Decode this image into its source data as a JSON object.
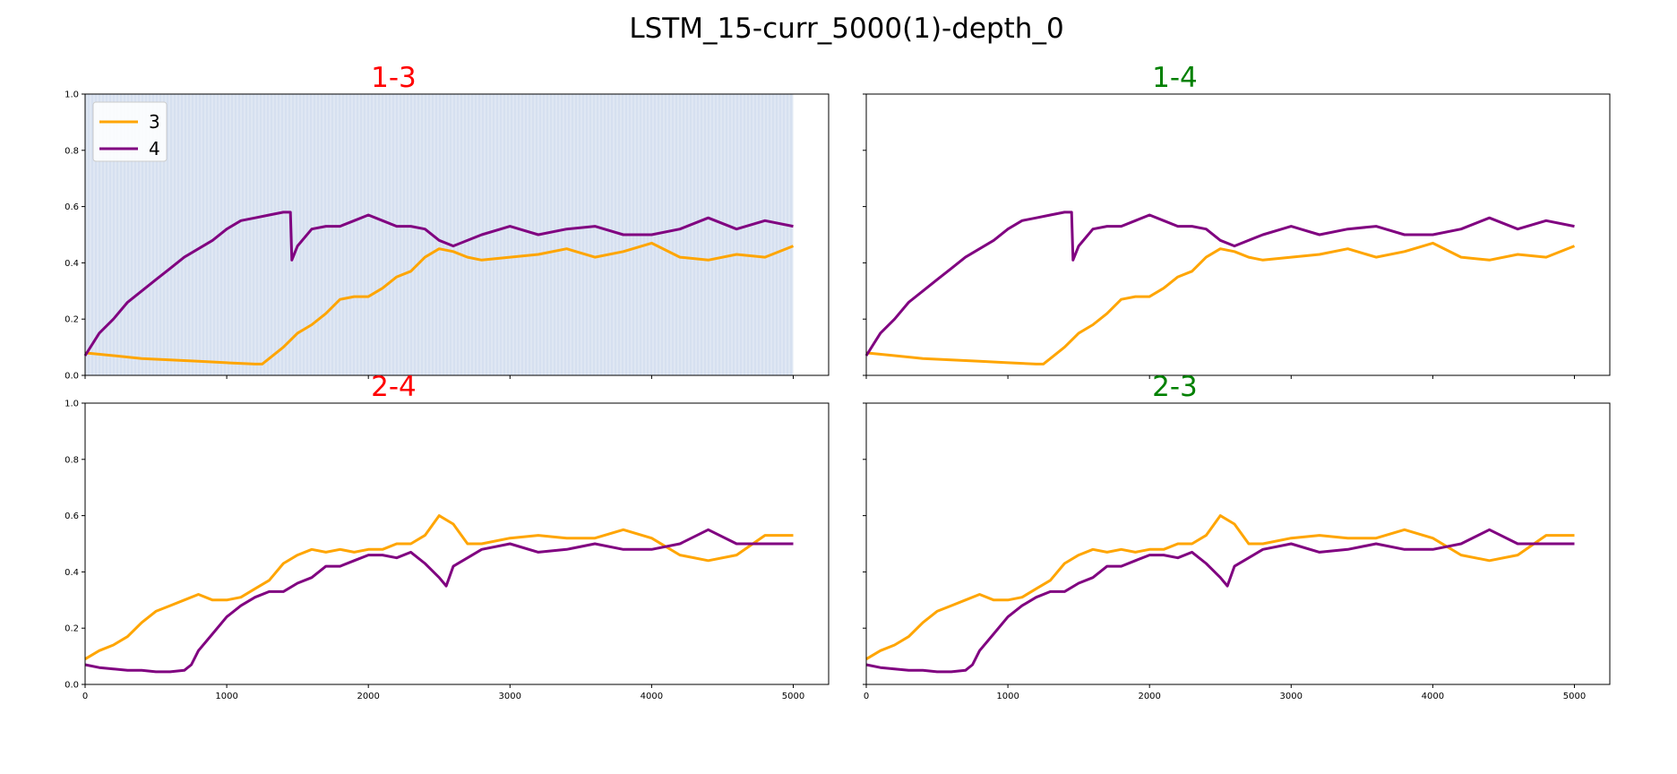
{
  "figure": {
    "title": "LSTM_15-curr_5000(1)-depth_0"
  },
  "colors": {
    "series_3": "#FFA500",
    "series_4": "#800080",
    "title_red": "#FF0000",
    "title_green": "#008000",
    "shade": "#dfe7f3"
  },
  "chart_data": [
    {
      "type": "line",
      "title": "1-3",
      "title_color": "red",
      "xlim": [
        0,
        5250
      ],
      "ylim": [
        0,
        1
      ],
      "xticks": [
        0,
        1000,
        2000,
        3000,
        4000,
        5000
      ],
      "xtick_labels_visible": false,
      "yticks": [
        0.0,
        0.2,
        0.4,
        0.6,
        0.8,
        1.0
      ],
      "ytick_labels": [
        "0.0",
        "0.2",
        "0.4",
        "0.6",
        "0.8",
        "1.0"
      ],
      "yticks_labels_visible": true,
      "shaded_region": [
        0,
        5000
      ],
      "legend": {
        "placement": "upper-left",
        "entries": [
          "3",
          "4"
        ]
      },
      "series": [
        {
          "name": "3",
          "color": "orange",
          "x": [
            0,
            200,
            400,
            600,
            800,
            1000,
            1200,
            1250,
            1300,
            1400,
            1500,
            1600,
            1700,
            1800,
            1900,
            2000,
            2100,
            2200,
            2300,
            2400,
            2500,
            2600,
            2700,
            2800,
            3000,
            3200,
            3400,
            3600,
            3800,
            4000,
            4200,
            4400,
            4600,
            4800,
            5000
          ],
          "y": [
            0.08,
            0.07,
            0.06,
            0.055,
            0.05,
            0.045,
            0.04,
            0.04,
            0.06,
            0.1,
            0.15,
            0.18,
            0.22,
            0.27,
            0.28,
            0.28,
            0.31,
            0.35,
            0.37,
            0.42,
            0.45,
            0.44,
            0.42,
            0.41,
            0.42,
            0.43,
            0.45,
            0.42,
            0.44,
            0.47,
            0.42,
            0.41,
            0.43,
            0.42,
            0.46
          ]
        },
        {
          "name": "4",
          "color": "purple",
          "x": [
            0,
            100,
            200,
            300,
            400,
            500,
            600,
            700,
            800,
            900,
            1000,
            1100,
            1200,
            1300,
            1400,
            1450,
            1460,
            1500,
            1600,
            1700,
            1800,
            1900,
            2000,
            2100,
            2200,
            2300,
            2400,
            2500,
            2600,
            2800,
            3000,
            3200,
            3400,
            3600,
            3800,
            4000,
            4200,
            4400,
            4600,
            4800,
            5000
          ],
          "y": [
            0.07,
            0.15,
            0.2,
            0.26,
            0.3,
            0.34,
            0.38,
            0.42,
            0.45,
            0.48,
            0.52,
            0.55,
            0.56,
            0.57,
            0.58,
            0.58,
            0.41,
            0.46,
            0.52,
            0.53,
            0.53,
            0.55,
            0.57,
            0.55,
            0.53,
            0.53,
            0.52,
            0.48,
            0.46,
            0.5,
            0.53,
            0.5,
            0.52,
            0.53,
            0.5,
            0.5,
            0.52,
            0.56,
            0.52,
            0.55,
            0.53
          ]
        }
      ]
    },
    {
      "type": "line",
      "title": "1-4",
      "title_color": "green",
      "xlim": [
        0,
        5250
      ],
      "ylim": [
        0,
        1
      ],
      "xticks": [
        0,
        1000,
        2000,
        3000,
        4000,
        5000
      ],
      "xtick_labels_visible": false,
      "yticks": [
        0.0,
        0.2,
        0.4,
        0.6,
        0.8,
        1.0
      ],
      "ytick_labels": [
        "0.0",
        "0.2",
        "0.4",
        "0.6",
        "0.8",
        "1.0"
      ],
      "yticks_labels_visible": false,
      "series": [
        {
          "name": "3",
          "color": "orange",
          "x": [
            0,
            200,
            400,
            600,
            800,
            1000,
            1200,
            1250,
            1300,
            1400,
            1500,
            1600,
            1700,
            1800,
            1900,
            2000,
            2100,
            2200,
            2300,
            2400,
            2500,
            2600,
            2700,
            2800,
            3000,
            3200,
            3400,
            3600,
            3800,
            4000,
            4200,
            4400,
            4600,
            4800,
            5000
          ],
          "y": [
            0.08,
            0.07,
            0.06,
            0.055,
            0.05,
            0.045,
            0.04,
            0.04,
            0.06,
            0.1,
            0.15,
            0.18,
            0.22,
            0.27,
            0.28,
            0.28,
            0.31,
            0.35,
            0.37,
            0.42,
            0.45,
            0.44,
            0.42,
            0.41,
            0.42,
            0.43,
            0.45,
            0.42,
            0.44,
            0.47,
            0.42,
            0.41,
            0.43,
            0.42,
            0.46
          ]
        },
        {
          "name": "4",
          "color": "purple",
          "x": [
            0,
            100,
            200,
            300,
            400,
            500,
            600,
            700,
            800,
            900,
            1000,
            1100,
            1200,
            1300,
            1400,
            1450,
            1460,
            1500,
            1600,
            1700,
            1800,
            1900,
            2000,
            2100,
            2200,
            2300,
            2400,
            2500,
            2600,
            2800,
            3000,
            3200,
            3400,
            3600,
            3800,
            4000,
            4200,
            4400,
            4600,
            4800,
            5000
          ],
          "y": [
            0.07,
            0.15,
            0.2,
            0.26,
            0.3,
            0.34,
            0.38,
            0.42,
            0.45,
            0.48,
            0.52,
            0.55,
            0.56,
            0.57,
            0.58,
            0.58,
            0.41,
            0.46,
            0.52,
            0.53,
            0.53,
            0.55,
            0.57,
            0.55,
            0.53,
            0.53,
            0.52,
            0.48,
            0.46,
            0.5,
            0.53,
            0.5,
            0.52,
            0.53,
            0.5,
            0.5,
            0.52,
            0.56,
            0.52,
            0.55,
            0.53
          ]
        }
      ]
    },
    {
      "type": "line",
      "title": "2-4",
      "title_color": "red",
      "xlim": [
        0,
        5250
      ],
      "ylim": [
        0,
        1
      ],
      "xticks": [
        0,
        1000,
        2000,
        3000,
        4000,
        5000
      ],
      "xtick_labels": [
        "0",
        "1000",
        "2000",
        "3000",
        "4000",
        "5000"
      ],
      "xtick_labels_visible": true,
      "yticks": [
        0.0,
        0.2,
        0.4,
        0.6,
        0.8,
        1.0
      ],
      "ytick_labels": [
        "0.0",
        "0.2",
        "0.4",
        "0.6",
        "0.8",
        "1.0"
      ],
      "yticks_labels_visible": true,
      "series": [
        {
          "name": "3",
          "color": "orange",
          "x": [
            0,
            100,
            200,
            300,
            400,
            500,
            600,
            700,
            800,
            900,
            1000,
            1100,
            1200,
            1300,
            1400,
            1500,
            1600,
            1700,
            1800,
            1900,
            2000,
            2100,
            2200,
            2300,
            2400,
            2500,
            2600,
            2700,
            2800,
            3000,
            3200,
            3400,
            3600,
            3800,
            4000,
            4200,
            4400,
            4600,
            4800,
            5000
          ],
          "y": [
            0.09,
            0.12,
            0.14,
            0.17,
            0.22,
            0.26,
            0.28,
            0.3,
            0.32,
            0.3,
            0.3,
            0.31,
            0.34,
            0.37,
            0.43,
            0.46,
            0.48,
            0.47,
            0.48,
            0.47,
            0.48,
            0.48,
            0.5,
            0.5,
            0.53,
            0.6,
            0.57,
            0.5,
            0.5,
            0.52,
            0.53,
            0.52,
            0.52,
            0.55,
            0.52,
            0.46,
            0.44,
            0.46,
            0.53,
            0.53
          ]
        },
        {
          "name": "4",
          "color": "purple",
          "x": [
            0,
            100,
            200,
            300,
            400,
            500,
            600,
            700,
            750,
            800,
            900,
            1000,
            1100,
            1200,
            1300,
            1400,
            1500,
            1600,
            1700,
            1800,
            1900,
            2000,
            2100,
            2200,
            2300,
            2400,
            2500,
            2550,
            2600,
            2700,
            2800,
            3000,
            3200,
            3400,
            3600,
            3800,
            4000,
            4200,
            4400,
            4600,
            4800,
            5000
          ],
          "y": [
            0.07,
            0.06,
            0.055,
            0.05,
            0.05,
            0.045,
            0.045,
            0.05,
            0.07,
            0.12,
            0.18,
            0.24,
            0.28,
            0.31,
            0.33,
            0.33,
            0.36,
            0.38,
            0.42,
            0.42,
            0.44,
            0.46,
            0.46,
            0.45,
            0.47,
            0.43,
            0.38,
            0.35,
            0.42,
            0.45,
            0.48,
            0.5,
            0.47,
            0.48,
            0.5,
            0.48,
            0.48,
            0.5,
            0.55,
            0.5,
            0.5,
            0.5
          ]
        }
      ]
    },
    {
      "type": "line",
      "title": "2-3",
      "title_color": "green",
      "xlim": [
        0,
        5250
      ],
      "ylim": [
        0,
        1
      ],
      "xticks": [
        0,
        1000,
        2000,
        3000,
        4000,
        5000
      ],
      "xtick_labels": [
        "0",
        "1000",
        "2000",
        "3000",
        "4000",
        "5000"
      ],
      "xtick_labels_visible": true,
      "yticks": [
        0.0,
        0.2,
        0.4,
        0.6,
        0.8,
        1.0
      ],
      "ytick_labels": [
        "0.0",
        "0.2",
        "0.4",
        "0.6",
        "0.8",
        "1.0"
      ],
      "yticks_labels_visible": false,
      "series": [
        {
          "name": "3",
          "color": "orange",
          "x": [
            0,
            100,
            200,
            300,
            400,
            500,
            600,
            700,
            800,
            900,
            1000,
            1100,
            1200,
            1300,
            1400,
            1500,
            1600,
            1700,
            1800,
            1900,
            2000,
            2100,
            2200,
            2300,
            2400,
            2500,
            2600,
            2700,
            2800,
            3000,
            3200,
            3400,
            3600,
            3800,
            4000,
            4200,
            4400,
            4600,
            4800,
            5000
          ],
          "y": [
            0.09,
            0.12,
            0.14,
            0.17,
            0.22,
            0.26,
            0.28,
            0.3,
            0.32,
            0.3,
            0.3,
            0.31,
            0.34,
            0.37,
            0.43,
            0.46,
            0.48,
            0.47,
            0.48,
            0.47,
            0.48,
            0.48,
            0.5,
            0.5,
            0.53,
            0.6,
            0.57,
            0.5,
            0.5,
            0.52,
            0.53,
            0.52,
            0.52,
            0.55,
            0.52,
            0.46,
            0.44,
            0.46,
            0.53,
            0.53
          ]
        },
        {
          "name": "4",
          "color": "purple",
          "x": [
            0,
            100,
            200,
            300,
            400,
            500,
            600,
            700,
            750,
            800,
            900,
            1000,
            1100,
            1200,
            1300,
            1400,
            1500,
            1600,
            1700,
            1800,
            1900,
            2000,
            2100,
            2200,
            2300,
            2400,
            2500,
            2550,
            2600,
            2700,
            2800,
            3000,
            3200,
            3400,
            3600,
            3800,
            4000,
            4200,
            4400,
            4600,
            4800,
            5000
          ],
          "y": [
            0.07,
            0.06,
            0.055,
            0.05,
            0.05,
            0.045,
            0.045,
            0.05,
            0.07,
            0.12,
            0.18,
            0.24,
            0.28,
            0.31,
            0.33,
            0.33,
            0.36,
            0.38,
            0.42,
            0.42,
            0.44,
            0.46,
            0.46,
            0.45,
            0.47,
            0.43,
            0.38,
            0.35,
            0.42,
            0.45,
            0.48,
            0.5,
            0.47,
            0.48,
            0.5,
            0.48,
            0.48,
            0.5,
            0.55,
            0.5,
            0.5,
            0.5
          ]
        }
      ]
    }
  ]
}
